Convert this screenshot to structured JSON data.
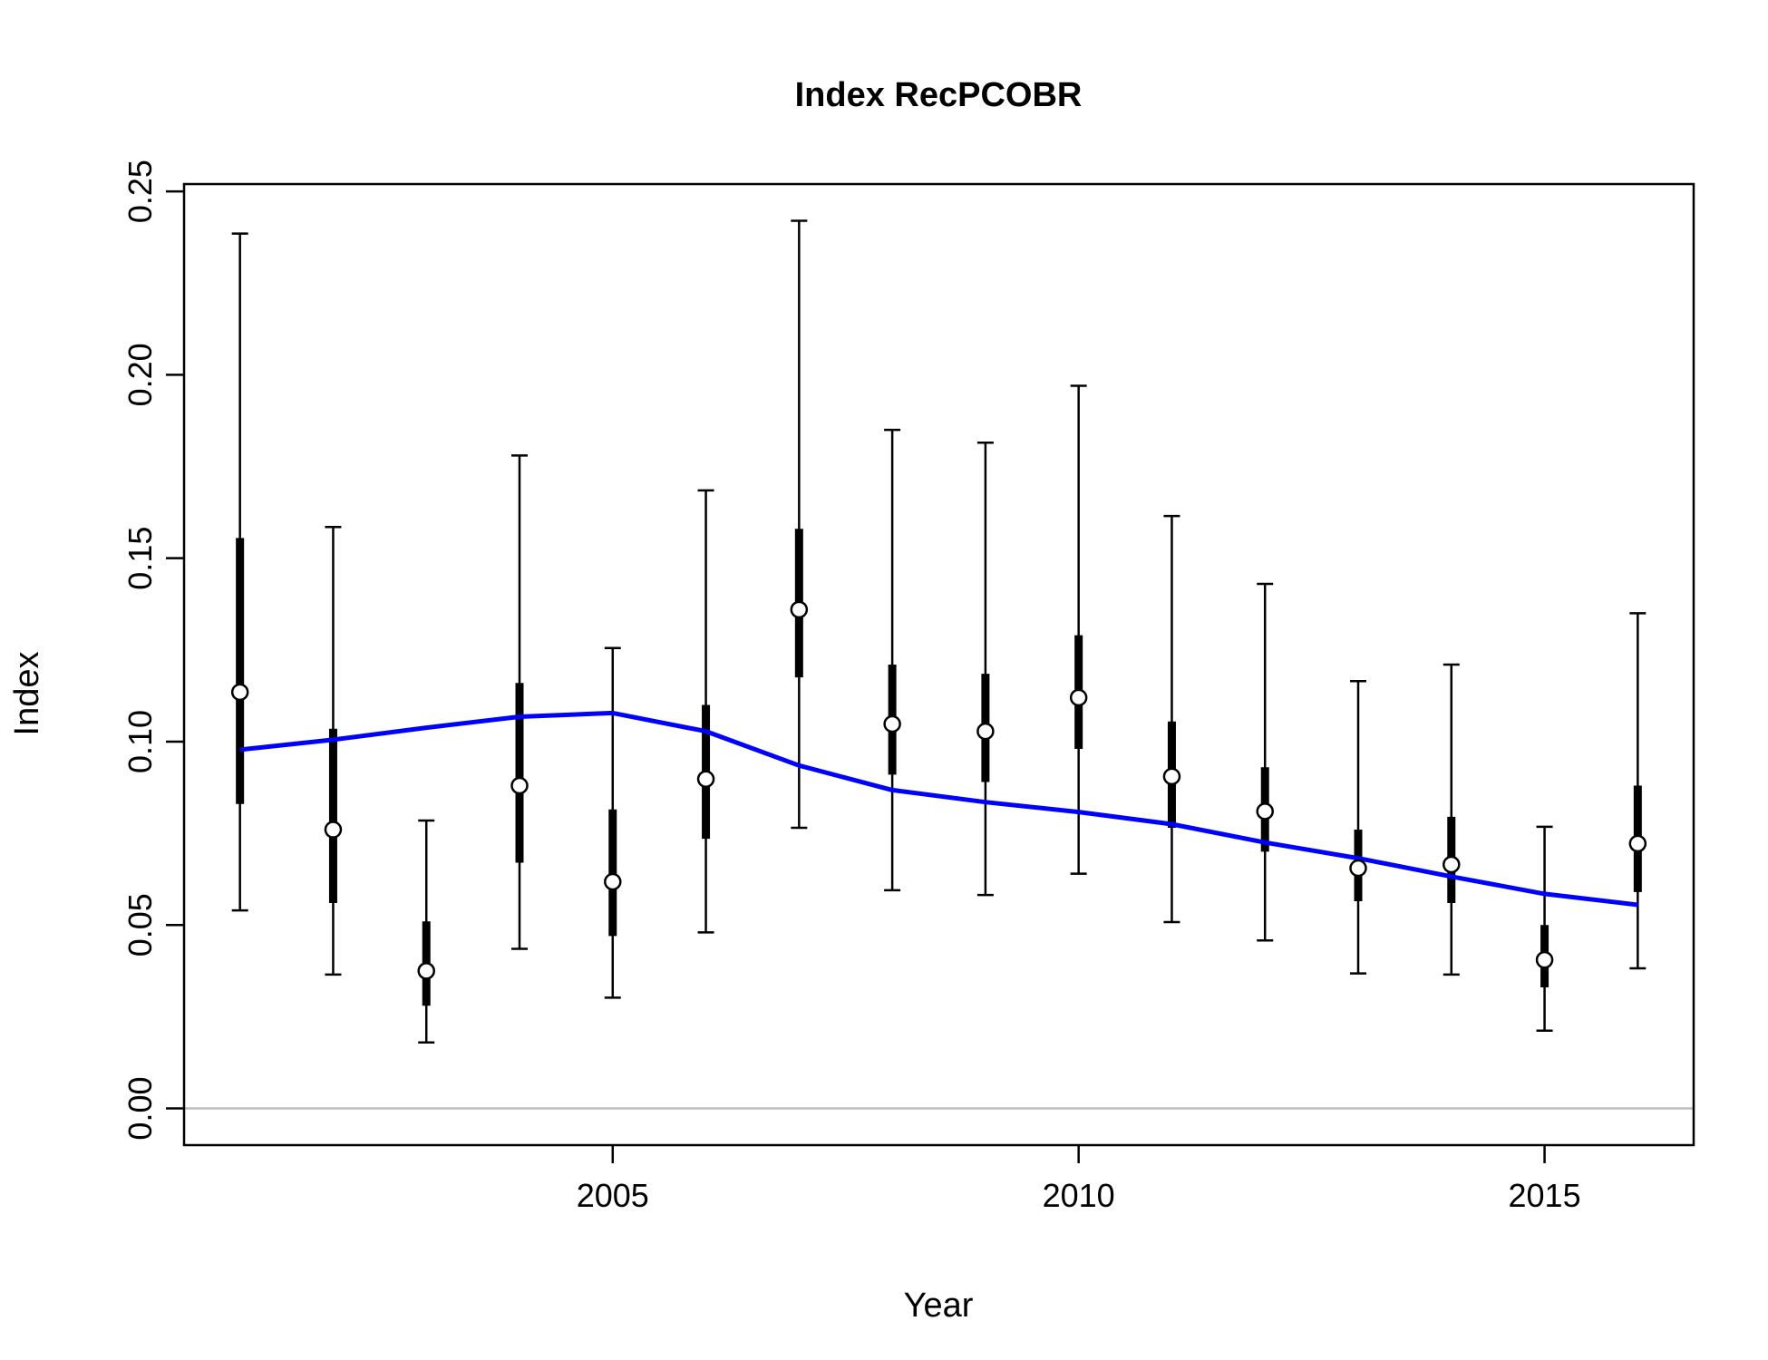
{
  "chart_data": {
    "type": "scatter",
    "title": "Index RecPCOBR",
    "xlabel": "Year",
    "ylabel": "Index",
    "xlim": [
      2000.4,
      2016.6
    ],
    "ylim": [
      -0.01,
      0.252
    ],
    "x_ticks": [
      2005,
      2010,
      2015
    ],
    "x_tick_labels": [
      "2005",
      "2010",
      "2015"
    ],
    "y_ticks": [
      0.0,
      0.05,
      0.1,
      0.15,
      0.2,
      0.25
    ],
    "y_tick_labels": [
      "0.00",
      "0.05",
      "0.10",
      "0.15",
      "0.20",
      "0.25"
    ],
    "zero_line": true,
    "grid": false,
    "colors": {
      "fit_line": "#0000ff",
      "zero_line": "#bebebe",
      "points_fill": "#ffffff",
      "error_bars": "#000000"
    },
    "series": [
      {
        "kind": "observed",
        "x": [
          2001,
          2002,
          2003,
          2004,
          2005,
          2006,
          2007,
          2008,
          2009,
          2010,
          2011,
          2012,
          2013,
          2014,
          2015,
          2016
        ],
        "y": [
          0.1135,
          0.076,
          0.0375,
          0.088,
          0.0618,
          0.0898,
          0.136,
          0.1048,
          0.1028,
          0.112,
          0.0905,
          0.081,
          0.0655,
          0.0665,
          0.0405,
          0.0722
        ],
        "lower_inner": [
          0.083,
          0.056,
          0.028,
          0.067,
          0.047,
          0.0735,
          0.1175,
          0.091,
          0.089,
          0.098,
          0.0765,
          0.07,
          0.0565,
          0.056,
          0.033,
          0.059
        ],
        "upper_inner": [
          0.1555,
          0.1035,
          0.051,
          0.116,
          0.0815,
          0.11,
          0.158,
          0.121,
          0.1185,
          0.129,
          0.1055,
          0.093,
          0.076,
          0.0795,
          0.05,
          0.088
        ],
        "lower_outer": [
          0.054,
          0.0365,
          0.018,
          0.0435,
          0.0302,
          0.048,
          0.0765,
          0.0595,
          0.0582,
          0.064,
          0.0508,
          0.0458,
          0.0368,
          0.0365,
          0.0212,
          0.0382
        ],
        "upper_outer": [
          0.2385,
          0.1585,
          0.0785,
          0.178,
          0.1255,
          0.1685,
          0.242,
          0.185,
          0.1815,
          0.197,
          0.1615,
          0.143,
          0.1165,
          0.121,
          0.0768,
          0.135
        ]
      },
      {
        "kind": "fitted",
        "x": [
          2001,
          2002,
          2003,
          2004,
          2005,
          2006,
          2007,
          2008,
          2009,
          2010,
          2011,
          2012,
          2013,
          2014,
          2015,
          2016
        ],
        "y": [
          0.0978,
          0.1005,
          0.1038,
          0.1068,
          0.1078,
          0.1028,
          0.0935,
          0.0868,
          0.0835,
          0.0808,
          0.0775,
          0.0725,
          0.0682,
          0.0632,
          0.0585,
          0.0555
        ]
      }
    ]
  }
}
